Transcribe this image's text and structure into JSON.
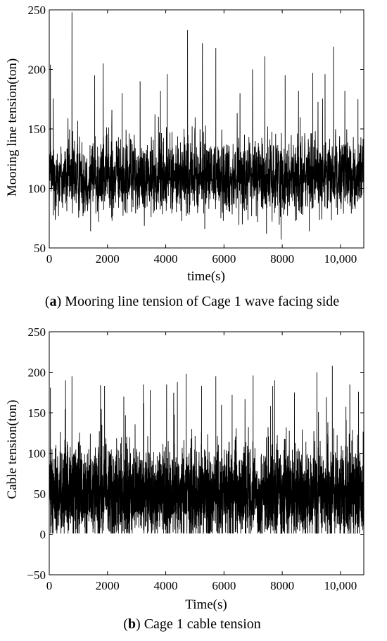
{
  "chart_data": [
    {
      "type": "line",
      "panel": "a",
      "caption_letter": "a",
      "caption_text": " Mooring line tension of Cage 1 wave facing side",
      "xlabel": "time(s)",
      "ylabel": "Mooring line tension(ton)",
      "xlim": [
        0,
        10800
      ],
      "ylim": [
        50,
        250
      ],
      "xticks": [
        0,
        2000,
        4000,
        6000,
        8000,
        10000
      ],
      "xtick_labels": [
        "0",
        "2000",
        "4000",
        "6000",
        "8000",
        "10,000"
      ],
      "yticks": [
        50,
        100,
        150,
        200,
        250
      ],
      "ytick_labels": [
        "50",
        "100",
        "150",
        "200",
        "250"
      ],
      "grid": false,
      "series": [
        {
          "baseline": 110,
          "spread": 16,
          "floor": 57,
          "samples": 2200,
          "peaks": [
            [
              40,
              204
            ],
            [
              780,
              248
            ],
            [
              1560,
              195
            ],
            [
              1850,
              205
            ],
            [
              2500,
              180
            ],
            [
              3120,
              190
            ],
            [
              3820,
              182
            ],
            [
              4050,
              196
            ],
            [
              4750,
              233
            ],
            [
              5260,
              222
            ],
            [
              5720,
              218
            ],
            [
              6550,
              180
            ],
            [
              6980,
              200
            ],
            [
              7400,
              211
            ],
            [
              8100,
              195
            ],
            [
              8560,
              182
            ],
            [
              9050,
              197
            ],
            [
              9470,
              196
            ],
            [
              9760,
              219
            ],
            [
              10150,
              182
            ],
            [
              10600,
              175
            ]
          ],
          "minima": [
            [
              7960,
              57
            ],
            [
              7460,
              62
            ],
            [
              8930,
              64
            ],
            [
              1420,
              64
            ],
            [
              5340,
              66
            ]
          ]
        }
      ]
    },
    {
      "type": "line",
      "panel": "b",
      "caption_letter": "b",
      "caption_text": " Cage 1 cable tension",
      "xlabel": "Time(s)",
      "ylabel": "Cable tension(ton)",
      "xlim": [
        0,
        10800
      ],
      "ylim": [
        -50,
        250
      ],
      "xticks": [
        0,
        2000,
        4000,
        6000,
        8000,
        10000
      ],
      "xtick_labels": [
        "0",
        "2000",
        "4000",
        "6000",
        "8000",
        "10,000"
      ],
      "yticks": [
        -50,
        0,
        50,
        100,
        150,
        200,
        250
      ],
      "ytick_labels": [
        "−50",
        "0",
        "50",
        "100",
        "150",
        "200",
        "250"
      ],
      "grid": false,
      "series": [
        {
          "baseline": 50,
          "spread": 28,
          "floor": 1,
          "samples": 3600,
          "peaks": [
            [
              40,
              181
            ],
            [
              560,
              190
            ],
            [
              780,
              195
            ],
            [
              1760,
              184
            ],
            [
              1900,
              183
            ],
            [
              2560,
              170
            ],
            [
              3230,
              185
            ],
            [
              4030,
              185
            ],
            [
              4400,
              188
            ],
            [
              4700,
              198
            ],
            [
              5230,
              183
            ],
            [
              5720,
              195
            ],
            [
              6280,
              172
            ],
            [
              7000,
              196
            ],
            [
              7740,
              190
            ],
            [
              8420,
              175
            ],
            [
              9190,
              200
            ],
            [
              9720,
              208
            ],
            [
              10320,
              185
            ],
            [
              10620,
              176
            ]
          ],
          "minima": [
            [
              2150,
              0
            ],
            [
              6050,
              2
            ],
            [
              8320,
              1
            ]
          ]
        }
      ]
    }
  ]
}
